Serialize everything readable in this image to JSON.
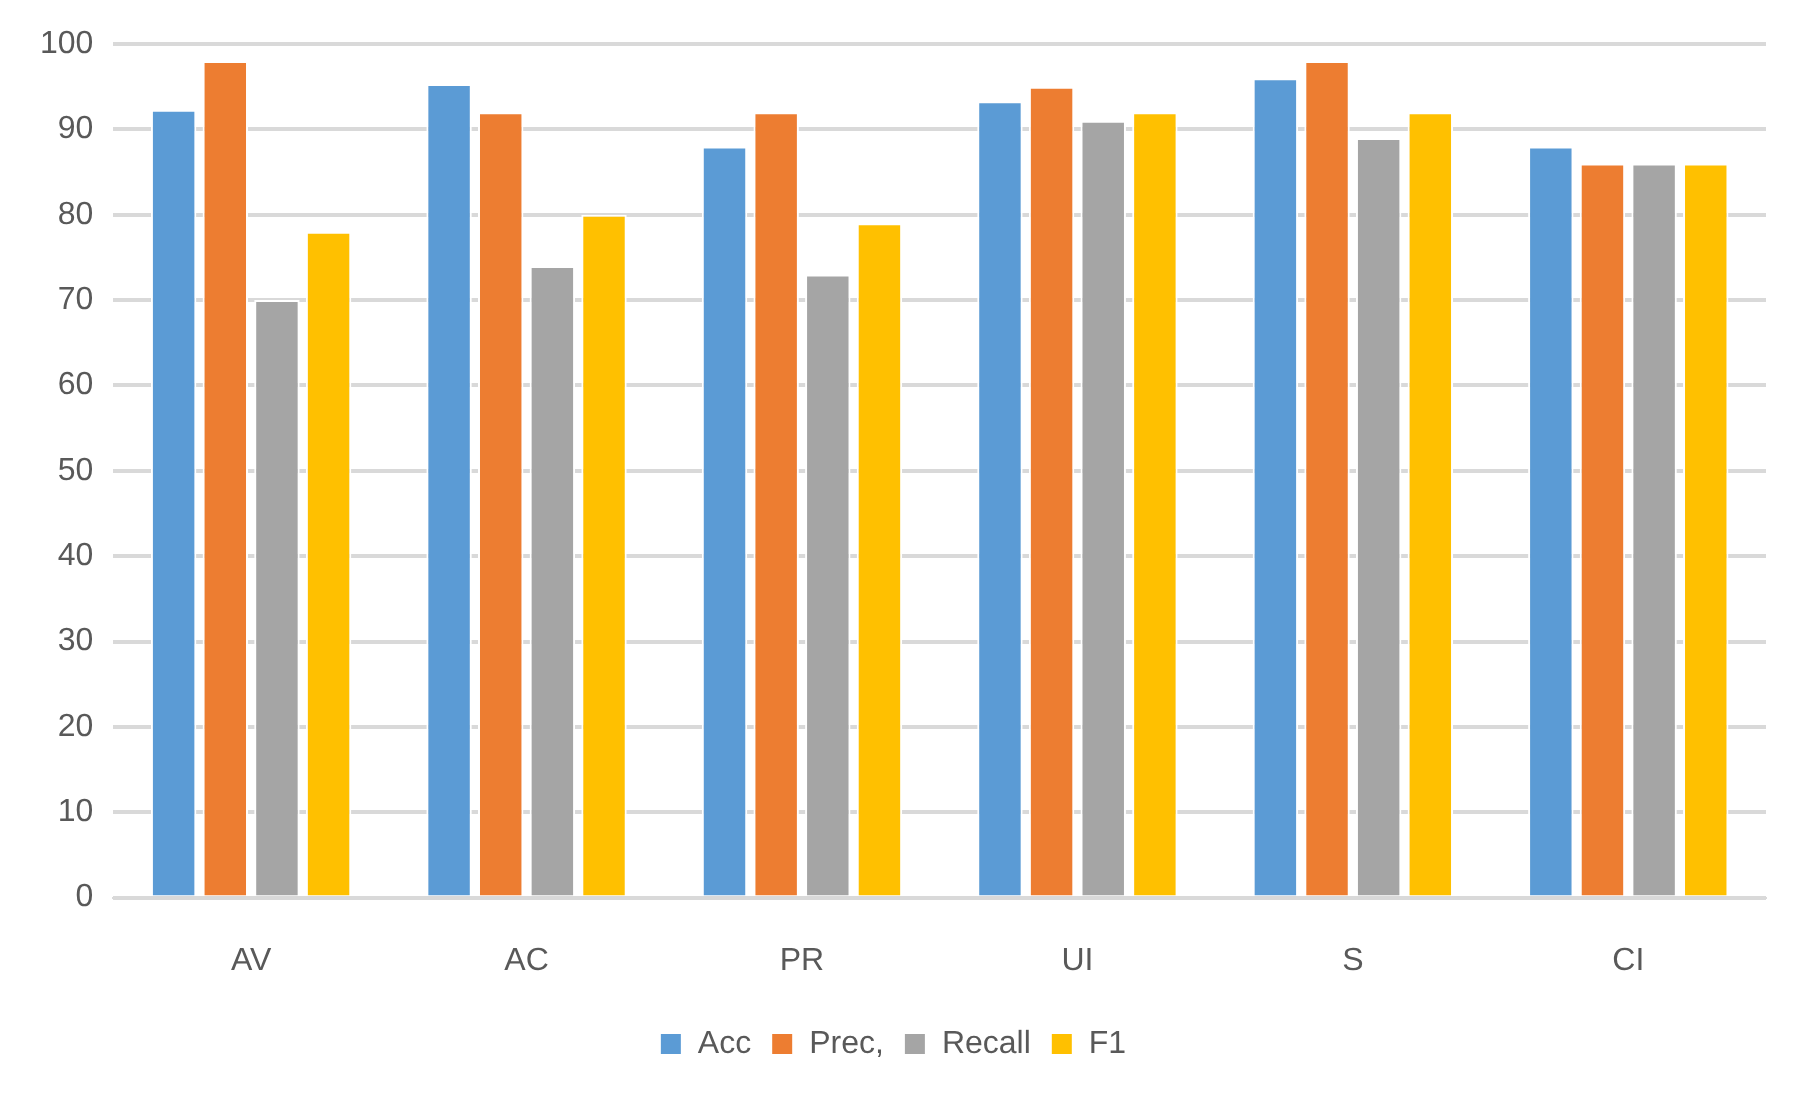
{
  "chart_data": {
    "type": "bar",
    "categories": [
      "AV",
      "AC",
      "PR",
      "UI",
      "S",
      "CI"
    ],
    "series": [
      {
        "name": "Acc",
        "color": "#5b9bd5",
        "values": [
          92.3,
          95.3,
          88,
          93.3,
          96,
          88
        ]
      },
      {
        "name": "Prec,",
        "color": "#ed7d31",
        "values": [
          98,
          92,
          92,
          95,
          98,
          86
        ]
      },
      {
        "name": "Recall",
        "color": "#a5a5a5",
        "values": [
          70,
          74,
          73,
          91,
          89,
          86
        ]
      },
      {
        "name": "F1",
        "color": "#ffc000",
        "values": [
          78,
          80,
          79,
          92,
          92,
          86
        ]
      }
    ],
    "ylim": [
      0,
      100
    ],
    "yticks": [
      0,
      10,
      20,
      30,
      40,
      50,
      60,
      70,
      80,
      90,
      100
    ],
    "grid": "y",
    "legend": "bottom"
  }
}
